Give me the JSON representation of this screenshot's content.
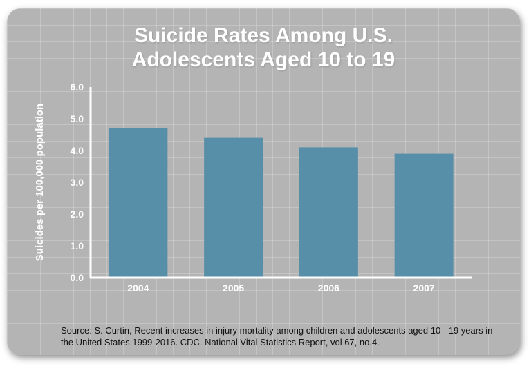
{
  "chart_data": {
    "type": "bar",
    "title_lines": [
      "Suicide Rates Among U.S.",
      "Adolescents Aged 10 to 19"
    ],
    "xlabel": "",
    "ylabel": "Suicides per 100,000 population",
    "categories": [
      "2004",
      "2005",
      "2006",
      "2007"
    ],
    "values": [
      4.7,
      4.4,
      4.1,
      3.9
    ],
    "ylim": [
      0,
      6
    ],
    "yticks": [
      "0.0",
      "1.0",
      "2.0",
      "3.0",
      "4.0",
      "5.0",
      "6.0"
    ],
    "bar_color": "#578ea8",
    "grid": false,
    "legend": "none"
  },
  "source": "Source: S. Curtin, Recent increases in injury mortality among children and adolescents aged 10 - 19 years in the United States 1999-2016. CDC. National Vital Statistics Report, vol 67, no.4."
}
